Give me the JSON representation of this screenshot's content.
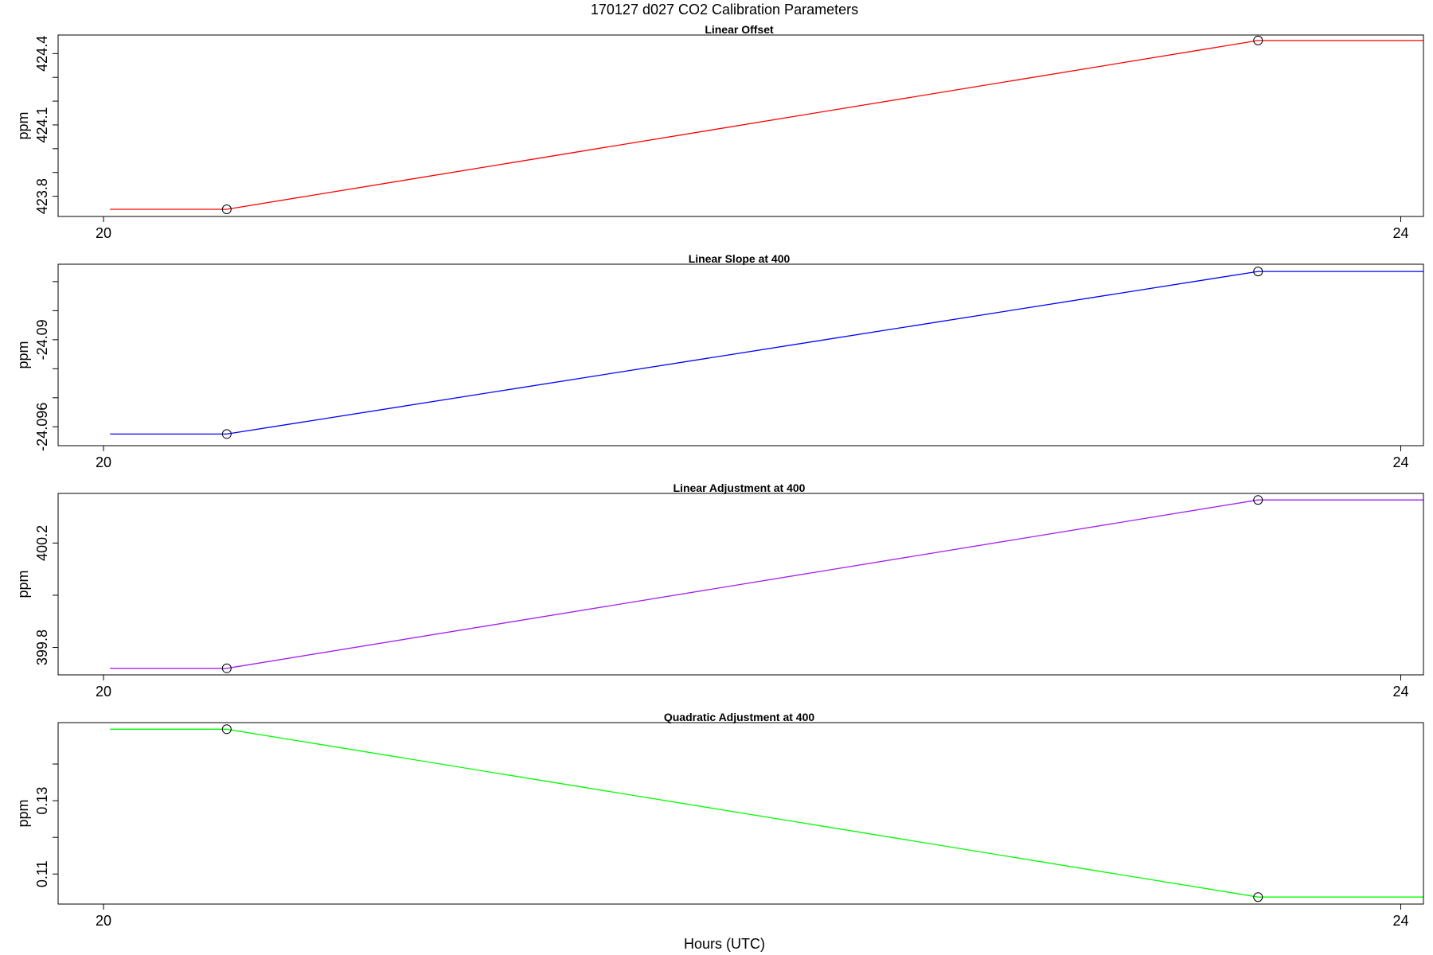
{
  "title": "170127   d027   CO2 Calibration Parameters",
  "xlabel": "Hours (UTC)",
  "chart_data": [
    {
      "type": "line",
      "title": "Linear Offset",
      "ylabel": "ppm",
      "color": "#ff0000",
      "xlim": [
        19.86,
        24.07
      ],
      "ylim": [
        423.715,
        424.478
      ],
      "xticks": [
        20,
        24
      ],
      "yticks_labeled": [
        423.8,
        424.1,
        424.4
      ],
      "yticks_minor": [
        423.9,
        424.0,
        424.2,
        424.3
      ],
      "line": {
        "x": [
          20.02,
          20.38,
          23.56,
          24.3
        ],
        "y": [
          423.745,
          423.745,
          424.455,
          424.455
        ]
      },
      "points": {
        "x": [
          20.38,
          23.56
        ],
        "y": [
          423.745,
          424.455
        ]
      }
    },
    {
      "type": "line",
      "title": "Linear Slope at 400",
      "ylabel": "ppm",
      "color": "#0000ff",
      "xlim": [
        19.86,
        24.07
      ],
      "ylim": [
        -24.0973,
        -24.0848
      ],
      "xticks": [
        20,
        24
      ],
      "yticks_labeled": [
        -24.096,
        -24.09
      ],
      "yticks_minor": [
        -24.094,
        -24.092,
        -24.088,
        -24.086
      ],
      "line": {
        "x": [
          20.02,
          20.38,
          23.56,
          24.3
        ],
        "y": [
          -24.0965,
          -24.0965,
          -24.0853,
          -24.0853
        ]
      },
      "points": {
        "x": [
          20.38,
          23.56
        ],
        "y": [
          -24.0965,
          -24.0853
        ]
      }
    },
    {
      "type": "line",
      "title": "Linear Adjustment at 400",
      "ylabel": "ppm",
      "color": "#a020f0",
      "xlim": [
        19.86,
        24.07
      ],
      "ylim": [
        399.695,
        400.39
      ],
      "xticks": [
        20,
        24
      ],
      "yticks_labeled": [
        399.8,
        400.2
      ],
      "yticks_minor": [
        400.0
      ],
      "line": {
        "x": [
          20.02,
          20.38,
          23.56,
          24.3
        ],
        "y": [
          399.72,
          399.72,
          400.365,
          400.365
        ]
      },
      "points": {
        "x": [
          20.38,
          23.56
        ],
        "y": [
          399.72,
          400.365
        ]
      }
    },
    {
      "type": "line",
      "title": "Quadratic Adjustment at 400",
      "ylabel": "ppm",
      "color": "#00ff00",
      "xlim": [
        19.86,
        24.07
      ],
      "ylim": [
        0.1018,
        0.1513
      ],
      "xticks": [
        20,
        24
      ],
      "yticks_labeled": [
        0.11,
        0.13
      ],
      "yticks_minor": [
        0.12,
        0.14
      ],
      "line": {
        "x": [
          20.02,
          20.38,
          23.56,
          24.3
        ],
        "y": [
          0.1495,
          0.1495,
          0.1037,
          0.1037
        ]
      },
      "points": {
        "x": [
          20.38,
          23.56
        ],
        "y": [
          0.1495,
          0.1037
        ]
      }
    }
  ]
}
